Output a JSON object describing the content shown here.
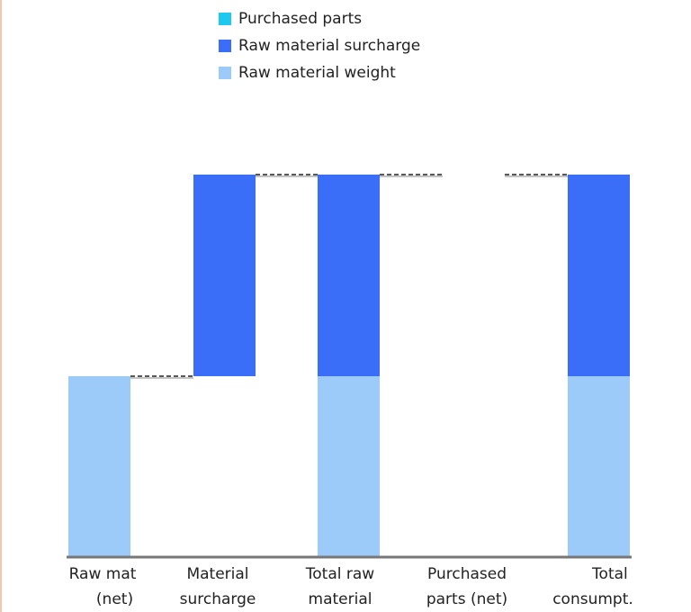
{
  "chart_data": {
    "type": "bar",
    "categories": [
      "Raw mat\n     (net)",
      "Material\nsurcharge",
      "Total raw\nmaterial",
      "Purchased\nparts (net)",
      "       Total\nconsumpt."
    ],
    "series": [
      {
        "name": "Raw material weight",
        "color": "#9ccbfa",
        "values": [
          100,
          0,
          100,
          0,
          100
        ]
      },
      {
        "name": "Raw material surcharge",
        "color": "#3a6ef8",
        "values": [
          0,
          112,
          112,
          0,
          112
        ]
      },
      {
        "name": "Purchased parts",
        "color": "#1fc8ee",
        "values": [
          0,
          0,
          0,
          0,
          0
        ]
      }
    ],
    "bases": [
      0,
      100,
      0,
      212,
      0
    ],
    "ylim": [
      0,
      260
    ],
    "grid": false,
    "legend_position": "top-center",
    "connectors": true
  }
}
